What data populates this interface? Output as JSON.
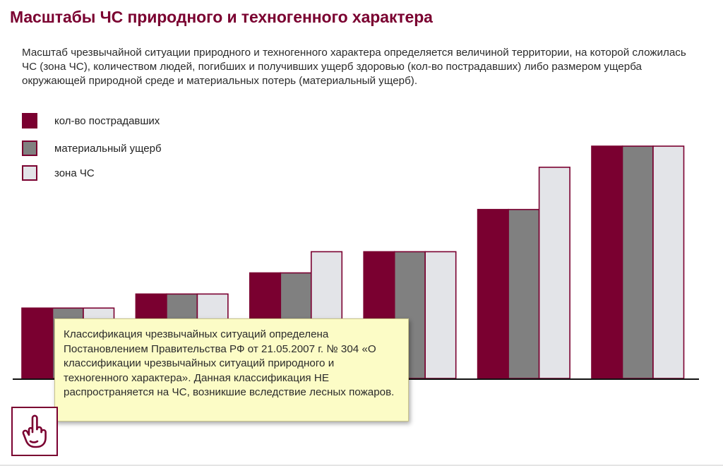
{
  "page": {
    "title": "Масштабы ЧС природного и техногенного характера",
    "intro": "Масштаб чрезвычайной ситуации природного и техногенного характера определяется величиной территории, на которой сложилась ЧС (зона ЧС), количеством людей, погибших и получивших ущерб здоровью (кол-во пострадавших) либо размером ущерба окружающей природной среде и материальных потерь (материальный ущерб).",
    "note": "Классификация чрезвычайных ситуаций определена Постановлением Правительства РФ от 21.05.2007 г. № 304 «О классификации чрезвычайных ситуаций природного и техногенного характера». Данная классификация НЕ распространяется на ЧС, возникшие вследствие лесных пожаров.",
    "hint_icon": "pointing-finger-icon"
  },
  "colors": {
    "accent": "#7a0030",
    "victims": "#7a0030",
    "damage": "#808080",
    "zone": "#e3e4e8",
    "note_bg": "#fcfcc6"
  },
  "chart_data": {
    "type": "bar",
    "title": "",
    "xlabel": "",
    "ylabel": "",
    "categories": [
      "",
      "",
      "",
      "",
      "",
      ""
    ],
    "series": [
      {
        "name": "кол-во пострадавших",
        "values": [
          1.0,
          1.2,
          1.5,
          1.8,
          2.4,
          3.3
        ]
      },
      {
        "name": "материальный ущерб",
        "values": [
          1.0,
          1.2,
          1.5,
          1.8,
          2.4,
          3.3
        ]
      },
      {
        "name": "зона ЧС",
        "values": [
          1.0,
          1.2,
          1.8,
          1.8,
          3.0,
          3.3
        ]
      }
    ],
    "ylim": [
      0,
      3.3
    ],
    "grid": false,
    "legend": "top-left"
  }
}
